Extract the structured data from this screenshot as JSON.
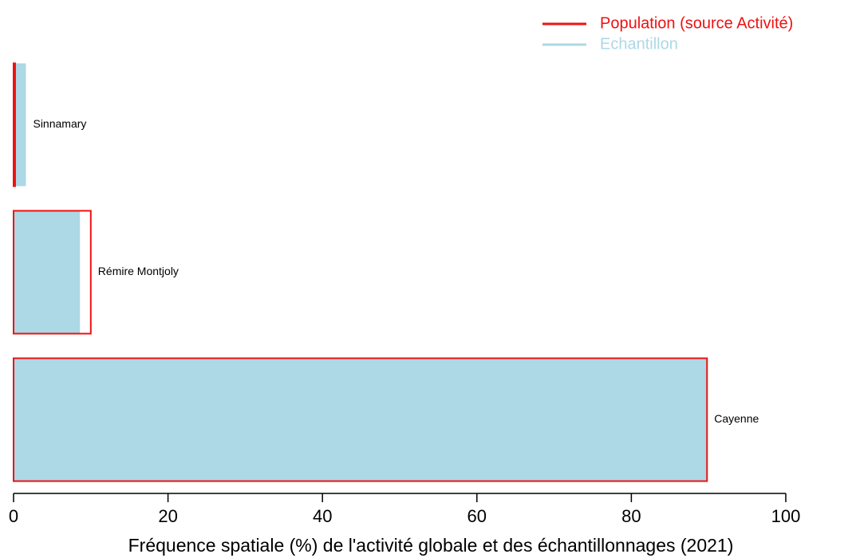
{
  "chart_data": {
    "type": "bar",
    "orientation": "horizontal",
    "xlabel": "Fréquence spatiale (%) de l'activité globale et des échantillonnages (2021)",
    "categories": [
      "Sinnamary",
      "Rémire Montjoly",
      "Cayenne"
    ],
    "series": [
      {
        "name": "Population (source Activité)",
        "color": "#ee1111",
        "values": [
          0.2,
          10.0,
          89.8
        ]
      },
      {
        "name": "Echantillon",
        "color": "#add8e6",
        "values": [
          1.6,
          8.6,
          89.8
        ]
      }
    ],
    "xlim": [
      0,
      100
    ],
    "xticks": [
      0,
      20,
      40,
      60,
      80,
      100
    ],
    "legend": "top-right"
  }
}
